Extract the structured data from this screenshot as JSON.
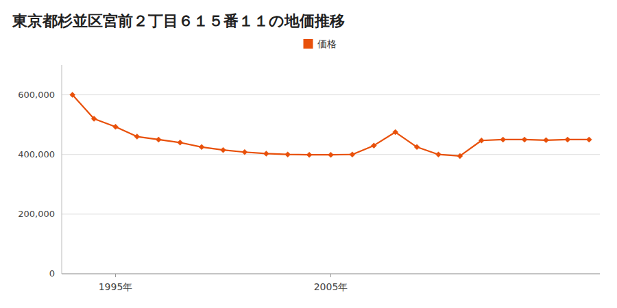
{
  "chart_data": {
    "type": "line",
    "title": "東京都杉並区宮前２丁目６１５番１１の地価推移",
    "x": [
      1993,
      1994,
      1995,
      1996,
      1997,
      1998,
      1999,
      2000,
      2001,
      2002,
      2003,
      2004,
      2005,
      2006,
      2007,
      2008,
      2009,
      2010,
      2011,
      2012,
      2013,
      2014,
      2015,
      2016,
      2017
    ],
    "series": [
      {
        "name": "価格",
        "color": "#e8500a",
        "marker": "diamond",
        "values": [
          600000,
          520000,
          493000,
          460000,
          450000,
          440000,
          425000,
          415000,
          408000,
          403000,
          400000,
          399000,
          399000,
          400000,
          430000,
          475000,
          425000,
          400000,
          395000,
          447000,
          450000,
          450000,
          448000,
          450000,
          450000
        ]
      }
    ],
    "xlim": [
      1992.5,
      2017.5
    ],
    "xticks": [
      {
        "value": 1995,
        "label": "1995年"
      },
      {
        "value": 2005,
        "label": "2005年"
      }
    ],
    "ylim": [
      0,
      700000
    ],
    "yticks": [
      0,
      {
        "value": 200000,
        "label": "200,000"
      },
      {
        "value": 400000,
        "label": "400,000"
      },
      {
        "value": 600000,
        "label": "600,000"
      }
    ],
    "grid": true,
    "legend": "top"
  }
}
